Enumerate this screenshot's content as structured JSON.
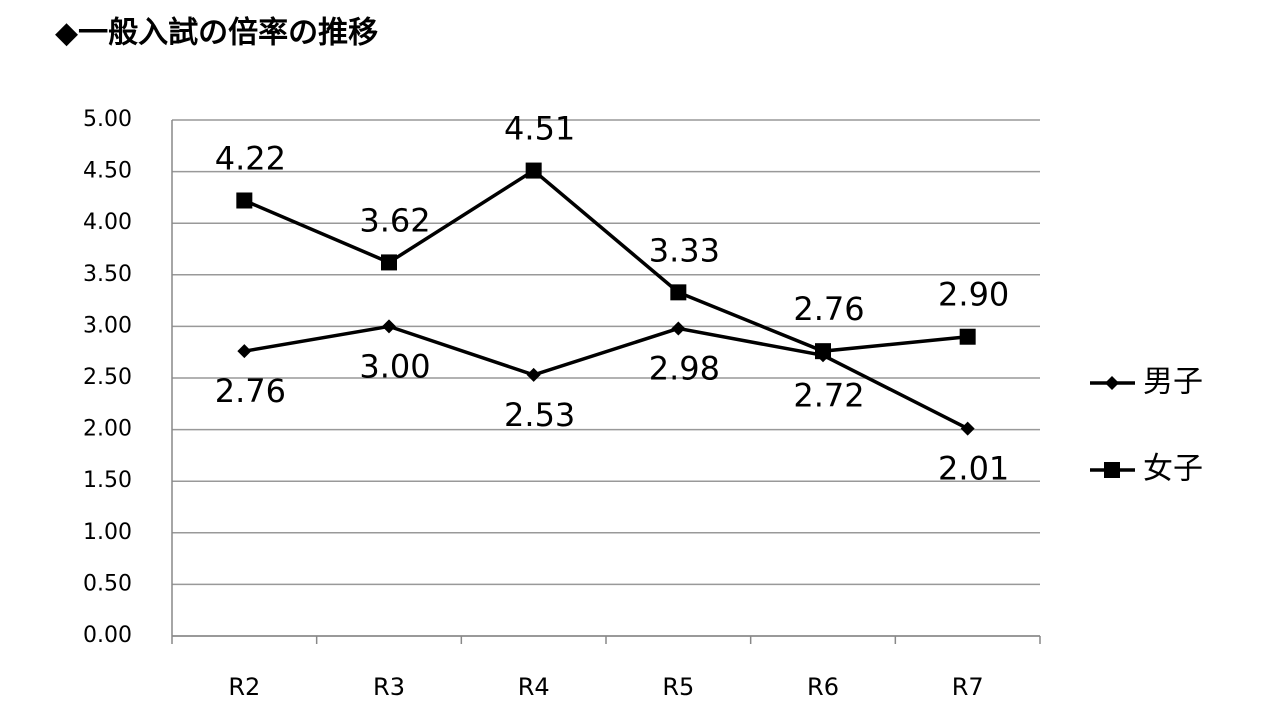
{
  "chart_data": {
    "type": "line",
    "title": "◆一般入試の倍率の推移",
    "categories": [
      "R2",
      "R3",
      "R4",
      "R5",
      "R6",
      "R7"
    ],
    "series": [
      {
        "name": "男子",
        "color": "#000000",
        "marker": "diamond",
        "values": [
          2.76,
          3.0,
          2.53,
          2.98,
          2.72,
          2.01
        ],
        "value_labels": [
          "2.76",
          "3.00",
          "2.53",
          "2.98",
          "2.72",
          "2.01"
        ]
      },
      {
        "name": "女子",
        "color": "#000000",
        "marker": "square",
        "values": [
          4.22,
          3.62,
          4.51,
          3.33,
          2.76,
          2.9
        ],
        "value_labels": [
          "4.22",
          "3.62",
          "4.51",
          "3.33",
          "2.76",
          "2.90"
        ]
      }
    ],
    "ylim": [
      0,
      5
    ],
    "yticks": [
      {
        "value": 0,
        "label": "0.00"
      },
      {
        "value": 0.5,
        "label": "0.50"
      },
      {
        "value": 1,
        "label": "1.00"
      },
      {
        "value": 1.5,
        "label": "1.50"
      },
      {
        "value": 2,
        "label": "2.00"
      },
      {
        "value": 2.5,
        "label": "2.50"
      },
      {
        "value": 3,
        "label": "3.00"
      },
      {
        "value": 3.5,
        "label": "3.50"
      },
      {
        "value": 4,
        "label": "4.00"
      },
      {
        "value": 4.5,
        "label": "4.50"
      },
      {
        "value": 5,
        "label": "5.00"
      }
    ],
    "grid": true,
    "legend": "right"
  }
}
